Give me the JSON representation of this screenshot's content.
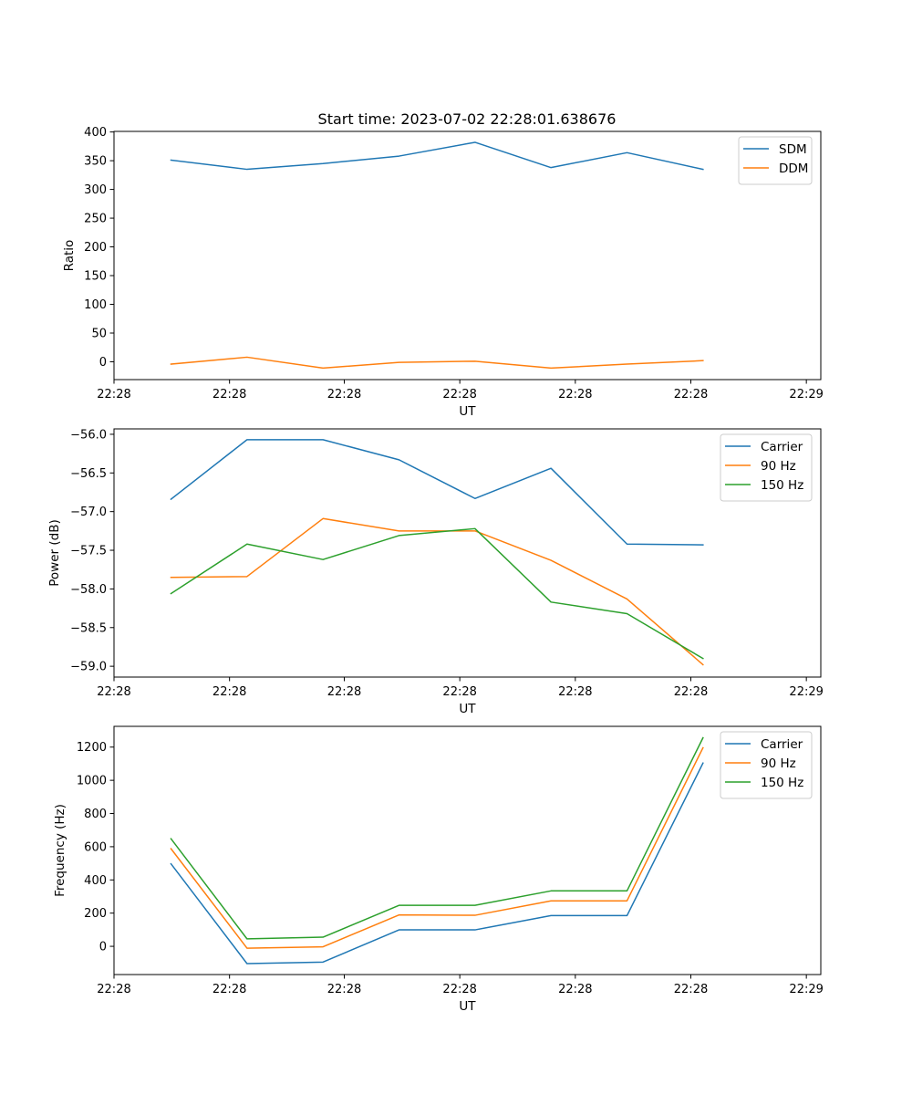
{
  "figure": {
    "title": "Start time: 2023-07-02 22:28:01.638676"
  },
  "chart_data": [
    {
      "type": "line",
      "title": "Start time: 2023-07-02 22:28:01.638676",
      "xlabel": "UT",
      "ylabel": "Ratio",
      "x": [
        0,
        1,
        2,
        3,
        4,
        5,
        6,
        7
      ],
      "xlim": [
        -0.75,
        8.55
      ],
      "xticks": [
        -0.75,
        0.77,
        2.28,
        3.8,
        5.32,
        6.84,
        8.36
      ],
      "xtick_labels": [
        "22:28",
        "22:28",
        "22:28",
        "22:28",
        "22:28",
        "22:28",
        "22:29"
      ],
      "ylim": [
        -31,
        401
      ],
      "yticks": [
        0,
        50,
        100,
        150,
        200,
        250,
        300,
        350,
        400
      ],
      "ytick_labels": [
        "0",
        "50",
        "100",
        "150",
        "200",
        "250",
        "300",
        "350",
        "400"
      ],
      "grid": false,
      "legend_position": "upper right",
      "series": [
        {
          "name": "SDM",
          "color": "#1f77b4",
          "values": [
            351,
            335,
            345,
            358,
            382,
            338,
            364,
            335
          ]
        },
        {
          "name": "DDM",
          "color": "#ff7f0e",
          "values": [
            -4,
            8,
            -11,
            -1,
            1,
            -11,
            -4,
            2
          ]
        }
      ]
    },
    {
      "type": "line",
      "xlabel": "UT",
      "ylabel": "Power (dB)",
      "x": [
        0,
        1,
        2,
        3,
        4,
        5,
        6,
        7
      ],
      "xlim": [
        -0.75,
        8.55
      ],
      "xticks": [
        -0.75,
        0.77,
        2.28,
        3.8,
        5.32,
        6.84,
        8.36
      ],
      "xtick_labels": [
        "22:28",
        "22:28",
        "22:28",
        "22:28",
        "22:28",
        "22:28",
        "22:29"
      ],
      "ylim": [
        -59.14,
        -55.93
      ],
      "yticks": [
        -59.0,
        -58.5,
        -58.0,
        -57.5,
        -57.0,
        -56.5,
        -56.0
      ],
      "ytick_labels": [
        "−59.0",
        "−58.5",
        "−58.0",
        "−57.5",
        "−57.0",
        "−56.5",
        "−56.0"
      ],
      "grid": false,
      "legend_position": "upper right",
      "series": [
        {
          "name": "Carrier",
          "color": "#1f77b4",
          "values": [
            -56.84,
            -56.07,
            -56.07,
            -56.33,
            -56.83,
            -56.44,
            -57.42,
            -57.43
          ]
        },
        {
          "name": "90 Hz",
          "color": "#ff7f0e",
          "values": [
            -57.85,
            -57.84,
            -57.09,
            -57.25,
            -57.25,
            -57.63,
            -58.13,
            -58.98
          ]
        },
        {
          "name": "150 Hz",
          "color": "#2ca02c",
          "values": [
            -58.06,
            -57.42,
            -57.62,
            -57.31,
            -57.22,
            -58.17,
            -58.32,
            -58.9
          ]
        }
      ]
    },
    {
      "type": "line",
      "xlabel": "UT",
      "ylabel": "Frequency (Hz)",
      "x": [
        0,
        1,
        2,
        3,
        4,
        5,
        6,
        7
      ],
      "xlim": [
        -0.75,
        8.55
      ],
      "xticks": [
        -0.75,
        0.77,
        2.28,
        3.8,
        5.32,
        6.84,
        8.36
      ],
      "xtick_labels": [
        "22:28",
        "22:28",
        "22:28",
        "22:28",
        "22:28",
        "22:28",
        "22:29"
      ],
      "ylim": [
        -170,
        1325
      ],
      "yticks": [
        0,
        200,
        400,
        600,
        800,
        1000,
        1200
      ],
      "ytick_labels": [
        "0",
        "200",
        "400",
        "600",
        "800",
        "1000",
        "1200"
      ],
      "grid": false,
      "legend_position": "upper right",
      "series": [
        {
          "name": "Carrier",
          "color": "#1f77b4",
          "values": [
            497,
            -104,
            -95,
            99,
            99,
            185,
            185,
            1104
          ]
        },
        {
          "name": "90 Hz",
          "color": "#ff7f0e",
          "values": [
            588,
            -11,
            -3,
            189,
            187,
            274,
            274,
            1196
          ]
        },
        {
          "name": "150 Hz",
          "color": "#2ca02c",
          "values": [
            648,
            45,
            55,
            247,
            247,
            334,
            334,
            1256
          ]
        }
      ]
    }
  ]
}
